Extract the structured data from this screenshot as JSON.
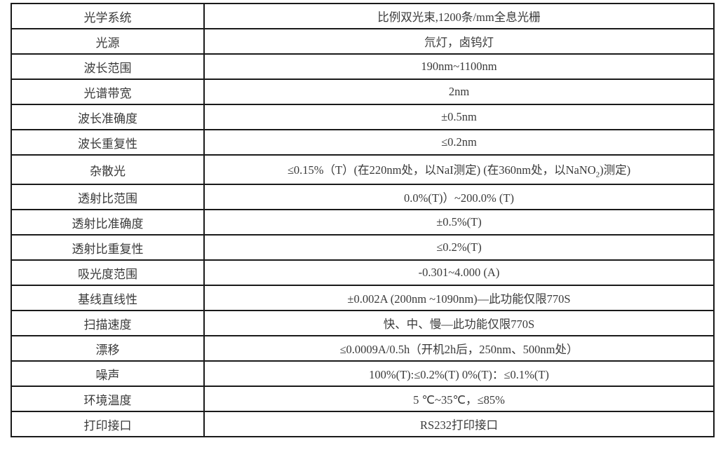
{
  "rows": [
    {
      "label": "光学系统",
      "value": "比例双光束,1200条/mm全息光栅"
    },
    {
      "label": "光源",
      "value": "氘灯，卤钨灯"
    },
    {
      "label": "波长范围",
      "value": "190nm~1100nm"
    },
    {
      "label": "光谱带宽",
      "value": "2nm"
    },
    {
      "label": "波长准确度",
      "value": "±0.5nm"
    },
    {
      "label": "波长重复性",
      "value": "≤0.2nm"
    },
    {
      "label": "杂散光",
      "value": "≤0.15%（T）(在220nm处，以NaI测定) (在360nm处，以NaNO",
      "value_sub": "2",
      "value_tail": ")测定)"
    },
    {
      "label": "透射比范围",
      "value": "0.0%(T)）~200.0% (T)"
    },
    {
      "label": "透射比准确度",
      "value": "±0.5%(T)"
    },
    {
      "label": "透射比重复性",
      "value": "≤0.2%(T)"
    },
    {
      "label": "吸光度范围",
      "value": "-0.301~4.000 (A)"
    },
    {
      "label": "基线直线性",
      "value": "±0.002A (200nm ~1090nm)—此功能仅限770S"
    },
    {
      "label": "扫描速度",
      "value": "快、中、慢—此功能仅限770S"
    },
    {
      "label": "漂移",
      "value": "≤0.0009A/0.5h（开机2h后，250nm、500nm处）"
    },
    {
      "label": "噪声",
      "value": "100%(T):≤0.2%(T) 0%(T)：≤0.1%(T)"
    },
    {
      "label": "环境温度",
      "value": "5 ℃~35℃，≤85%"
    },
    {
      "label": "打印接口",
      "value": "RS232打印接口"
    }
  ]
}
